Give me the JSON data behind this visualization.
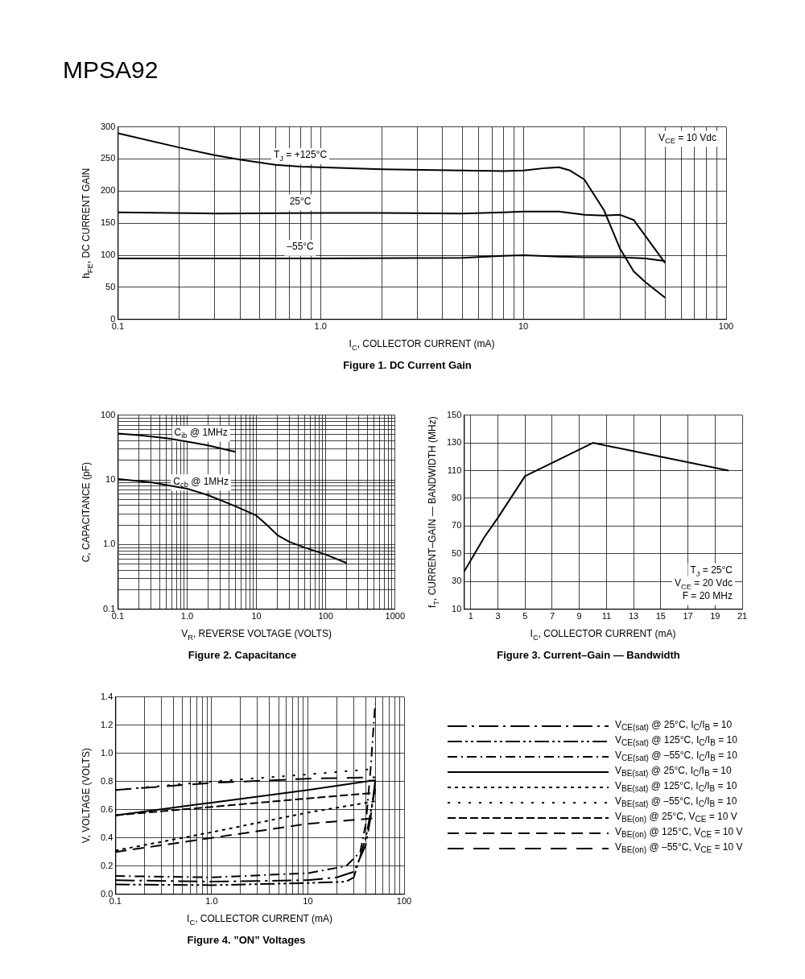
{
  "chart_data": [
    {
      "type": "other",
      "title": "MPSA92"
    },
    {
      "type": "line",
      "title": "Figure 1. DC Current Gain",
      "xlabel": "I$_{C}$, COLLECTOR CURRENT (mA)",
      "ylabel": "h$_{FE}$, DC CURRENT GAIN",
      "log": "x",
      "grid": true,
      "legend": false,
      "marker": "none",
      "xlim": [
        0.1,
        100
      ],
      "xticks": [
        0.1,
        {
          "value": 0.2,
          "label": null
        },
        {
          "value": 0.3,
          "label": null
        },
        {
          "value": 0.4,
          "label": null
        },
        {
          "value": 0.5,
          "label": null
        },
        {
          "value": 0.6,
          "label": null
        },
        {
          "value": 0.7,
          "label": null
        },
        {
          "value": 0.8,
          "label": null
        },
        {
          "value": 0.9,
          "label": null
        },
        {
          "value": 1,
          "label": "1.0"
        },
        {
          "value": 2,
          "label": null
        },
        {
          "value": 3,
          "label": null
        },
        {
          "value": 4,
          "label": null
        },
        {
          "value": 5,
          "label": null
        },
        {
          "value": 6,
          "label": null
        },
        {
          "value": 7,
          "label": null
        },
        {
          "value": 8,
          "label": null
        },
        {
          "value": 9,
          "label": null
        },
        10,
        {
          "value": 20,
          "label": null
        },
        {
          "value": 30,
          "label": null
        },
        {
          "value": 40,
          "label": null
        },
        {
          "value": 50,
          "label": null
        },
        {
          "value": 60,
          "label": null
        },
        {
          "value": 70,
          "label": null
        },
        {
          "value": 80,
          "label": null
        },
        {
          "value": 90,
          "label": null
        },
        100
      ],
      "ylim": [
        0,
        300
      ],
      "yticks": [
        0,
        50,
        100,
        150,
        200,
        250,
        300
      ],
      "annotations": [
        "V$_{CE}$ = 10 Vdc"
      ],
      "series": [
        {
          "name": "T$_{J}$ = +125°C",
          "color": "#000000",
          "line_style": "solid",
          "x": [
            0.1,
            0.2,
            0.3,
            0.4,
            0.6,
            0.8,
            1,
            2,
            5,
            8,
            10,
            13,
            15,
            17,
            20,
            25,
            30,
            35,
            40,
            50
          ],
          "values": [
            290,
            268,
            256,
            249,
            241,
            238,
            237,
            234,
            232,
            231,
            232,
            236,
            237,
            232,
            218,
            170,
            110,
            75,
            58,
            34
          ]
        },
        {
          "name": "25°C",
          "color": "#000000",
          "line_style": "solid",
          "x": [
            0.1,
            0.3,
            1,
            2,
            5,
            8,
            10,
            15,
            20,
            25,
            30,
            35,
            40,
            50
          ],
          "values": [
            167,
            165,
            166,
            166,
            165,
            167,
            168,
            168,
            163,
            162,
            163,
            155,
            130,
            88
          ]
        },
        {
          "name": "–55°C",
          "color": "#000000",
          "line_style": "solid",
          "x": [
            0.1,
            1,
            5,
            8,
            10,
            15,
            20,
            30,
            40,
            50
          ],
          "values": [
            95,
            95,
            96,
            99,
            100,
            98,
            97,
            97,
            95,
            91
          ]
        }
      ]
    },
    {
      "type": "line",
      "title": "Figure 2. Capacitance",
      "xlabel": "V$_{R}$, REVERSE VOLTAGE (VOLTS)",
      "ylabel": "C, CAPACITANCE (pF)",
      "log": "xy",
      "grid": true,
      "legend": false,
      "marker": "none",
      "xlim": [
        0.1,
        1000
      ],
      "xticks": [
        0.1,
        {
          "value": 0.2,
          "label": null
        },
        {
          "value": 0.3,
          "label": null
        },
        {
          "value": 0.4,
          "label": null
        },
        {
          "value": 0.5,
          "label": null
        },
        {
          "value": 0.6,
          "label": null
        },
        {
          "value": 0.7,
          "label": null
        },
        {
          "value": 0.8,
          "label": null
        },
        {
          "value": 0.9,
          "label": null
        },
        {
          "value": 1,
          "label": "1.0"
        },
        {
          "value": 2,
          "label": null
        },
        {
          "value": 3,
          "label": null
        },
        {
          "value": 4,
          "label": null
        },
        {
          "value": 5,
          "label": null
        },
        {
          "value": 6,
          "label": null
        },
        {
          "value": 7,
          "label": null
        },
        {
          "value": 8,
          "label": null
        },
        {
          "value": 9,
          "label": null
        },
        10,
        {
          "value": 20,
          "label": null
        },
        {
          "value": 30,
          "label": null
        },
        {
          "value": 40,
          "label": null
        },
        {
          "value": 50,
          "label": null
        },
        {
          "value": 60,
          "label": null
        },
        {
          "value": 70,
          "label": null
        },
        {
          "value": 80,
          "label": null
        },
        {
          "value": 90,
          "label": null
        },
        100,
        {
          "value": 200,
          "label": null
        },
        {
          "value": 300,
          "label": null
        },
        {
          "value": 400,
          "label": null
        },
        {
          "value": 500,
          "label": null
        },
        {
          "value": 600,
          "label": null
        },
        {
          "value": 700,
          "label": null
        },
        {
          "value": 800,
          "label": null
        },
        {
          "value": 900,
          "label": null
        },
        1000
      ],
      "ylim": [
        0.1,
        100
      ],
      "yticks": [
        0.1,
        {
          "value": 0.2,
          "label": null
        },
        {
          "value": 0.3,
          "label": null
        },
        {
          "value": 0.4,
          "label": null
        },
        {
          "value": 0.5,
          "label": null
        },
        {
          "value": 0.6,
          "label": null
        },
        {
          "value": 0.7,
          "label": null
        },
        {
          "value": 0.8,
          "label": null
        },
        {
          "value": 0.9,
          "label": null
        },
        {
          "value": 1,
          "label": "1.0"
        },
        {
          "value": 2,
          "label": null
        },
        {
          "value": 3,
          "label": null
        },
        {
          "value": 4,
          "label": null
        },
        {
          "value": 5,
          "label": null
        },
        {
          "value": 6,
          "label": null
        },
        {
          "value": 7,
          "label": null
        },
        {
          "value": 8,
          "label": null
        },
        {
          "value": 9,
          "label": null
        },
        10,
        {
          "value": 20,
          "label": null
        },
        {
          "value": 30,
          "label": null
        },
        {
          "value": 40,
          "label": null
        },
        {
          "value": 50,
          "label": null
        },
        {
          "value": 60,
          "label": null
        },
        {
          "value": 70,
          "label": null
        },
        {
          "value": 80,
          "label": null
        },
        {
          "value": 90,
          "label": null
        },
        100
      ],
      "series": [
        {
          "name": "C$_{ib}$ @ 1MHz",
          "color": "#000000",
          "line_style": "solid",
          "x": [
            0.1,
            0.2,
            0.5,
            1,
            2,
            5
          ],
          "values": [
            52,
            49,
            44,
            39,
            34,
            27
          ]
        },
        {
          "name": "C$_{cb}$ @ 1MHz",
          "color": "#000000",
          "line_style": "solid",
          "x": [
            0.1,
            0.3,
            1,
            2,
            5,
            10,
            15,
            20,
            30,
            50,
            100,
            200
          ],
          "values": [
            10.3,
            9.2,
            7.3,
            5.8,
            3.9,
            2.8,
            1.9,
            1.4,
            1.1,
            0.9,
            0.7,
            0.52
          ]
        }
      ]
    },
    {
      "type": "line",
      "title": "Figure 3. Current–Gain — Bandwidth",
      "xlabel": "I$_{C}$, COLLECTOR CURRENT (mA)",
      "ylabel": "f$_{T}$, CURRENT–GAIN — BANDWIDTH (MHz)",
      "grid": true,
      "legend": false,
      "marker": "none",
      "xlim": [
        0.5,
        21
      ],
      "xticks": [
        1,
        3,
        5,
        7,
        9,
        11,
        13,
        15,
        17,
        19,
        21
      ],
      "ylim": [
        10,
        150
      ],
      "yticks": [
        10,
        30,
        50,
        70,
        90,
        110,
        130,
        150
      ],
      "annotations": [
        "T$_{J}$ = 25°C",
        "V$_{CE}$ = 20 Vdc",
        "F = 20 MHz"
      ],
      "series": [
        {
          "color": "#000000",
          "line_style": "solid",
          "x": [
            0.5,
            2,
            3,
            5,
            10,
            20
          ],
          "values": [
            37,
            62,
            76,
            106,
            130,
            110
          ]
        }
      ]
    },
    {
      "type": "line",
      "title": "Figure 4. ”ON” Voltages",
      "xlabel": "I$_{C}$, COLLECTOR CURRENT (mA)",
      "ylabel": "V, VOLTAGE (VOLTS)",
      "log": "x",
      "grid": true,
      "legend": "right",
      "marker": "none",
      "xlim": [
        0.1,
        100
      ],
      "xticks": [
        0.1,
        {
          "value": 0.2,
          "label": null
        },
        {
          "value": 0.3,
          "label": null
        },
        {
          "value": 0.4,
          "label": null
        },
        {
          "value": 0.5,
          "label": null
        },
        {
          "value": 0.6,
          "label": null
        },
        {
          "value": 0.7,
          "label": null
        },
        {
          "value": 0.8,
          "label": null
        },
        {
          "value": 0.9,
          "label": null
        },
        {
          "value": 1,
          "label": "1.0"
        },
        {
          "value": 2,
          "label": null
        },
        {
          "value": 3,
          "label": null
        },
        {
          "value": 4,
          "label": null
        },
        {
          "value": 5,
          "label": null
        },
        {
          "value": 6,
          "label": null
        },
        {
          "value": 7,
          "label": null
        },
        {
          "value": 8,
          "label": null
        },
        {
          "value": 9,
          "label": null
        },
        10,
        {
          "value": 20,
          "label": null
        },
        {
          "value": 30,
          "label": null
        },
        {
          "value": 40,
          "label": null
        },
        {
          "value": 50,
          "label": null
        },
        {
          "value": 60,
          "label": null
        },
        {
          "value": 70,
          "label": null
        },
        {
          "value": 80,
          "label": null
        },
        {
          "value": 90,
          "label": null
        },
        100
      ],
      "ylim": [
        0,
        1.4
      ],
      "yticks": [
        {
          "value": 0,
          "label": "0.0"
        },
        0.2,
        0.4,
        0.6,
        0.8,
        {
          "value": 1,
          "label": "1.0"
        },
        1.2,
        1.4
      ],
      "series": [
        {
          "name": "V$_{CE(sat)}$ @ 25°C, I$_{C}$/I$_{B}$ = 10",
          "color": "#000000",
          "line_style": "longdashdot",
          "x": [
            0.1,
            1,
            10,
            20,
            30,
            40,
            45,
            50
          ],
          "values": [
            0.1,
            0.09,
            0.1,
            0.12,
            0.16,
            0.35,
            0.55,
            0.8
          ]
        },
        {
          "name": "V$_{CE(sat)}$ @ 125°C, I$_{C}$/I$_{B}$ = 10",
          "color": "#000000",
          "line_style": "dashdotdot",
          "x": [
            0.1,
            1,
            10,
            25,
            30,
            40,
            50
          ],
          "values": [
            0.07,
            0.065,
            0.08,
            0.09,
            0.12,
            0.4,
            0.75
          ]
        },
        {
          "name": "V$_{CE(sat)}$ @ –55°C, I$_{C}$/I$_{B}$ = 10",
          "color": "#000000",
          "line_style": "dashdot",
          "x": [
            0.1,
            1,
            10,
            25,
            35,
            40,
            45,
            50
          ],
          "values": [
            0.13,
            0.12,
            0.15,
            0.2,
            0.3,
            0.5,
            0.9,
            1.35
          ]
        },
        {
          "name": "V$_{BE(sat)}$ @ 25°C, I$_{C}$/I$_{B}$ = 10",
          "color": "#000000",
          "line_style": "solid",
          "x": [
            0.1,
            1,
            10,
            50
          ],
          "values": [
            0.56,
            0.65,
            0.74,
            0.81
          ]
        },
        {
          "name": "V$_{BE(sat)}$ @ 125°C, I$_{C}$/I$_{B}$ = 10",
          "color": "#000000",
          "line_style": "dotted",
          "x": [
            0.1,
            1,
            10,
            50
          ],
          "values": [
            0.31,
            0.44,
            0.58,
            0.66
          ]
        },
        {
          "name": "V$_{BE(sat)}$ @ –55°C, I$_{C}$/I$_{B}$ = 10",
          "color": "#000000",
          "line_style": "spaced-dotted",
          "x": [
            0.1,
            1,
            10,
            50
          ],
          "values": [
            0.74,
            0.8,
            0.85,
            0.89
          ]
        },
        {
          "name": "V$_{BE(on)}$ @ 25°C, V$_{CE}$ = 10 V",
          "color": "#000000",
          "line_style": "dashed",
          "x": [
            0.1,
            1,
            10,
            50
          ],
          "values": [
            0.56,
            0.62,
            0.68,
            0.72
          ]
        },
        {
          "name": "V$_{BE(on)}$ @ 125°C, V$_{CE}$ = 10 V",
          "color": "#000000",
          "line_style": "longdash",
          "x": [
            0.1,
            1,
            10,
            50
          ],
          "values": [
            0.3,
            0.4,
            0.5,
            0.54
          ]
        },
        {
          "name": "V$_{BE(on)}$ @ –55°C, V$_{CE}$ = 10 V",
          "color": "#000000",
          "line_style": "longdash-spaced",
          "x": [
            0.1,
            1,
            10,
            50
          ],
          "values": [
            0.74,
            0.79,
            0.82,
            0.83
          ]
        }
      ]
    }
  ]
}
